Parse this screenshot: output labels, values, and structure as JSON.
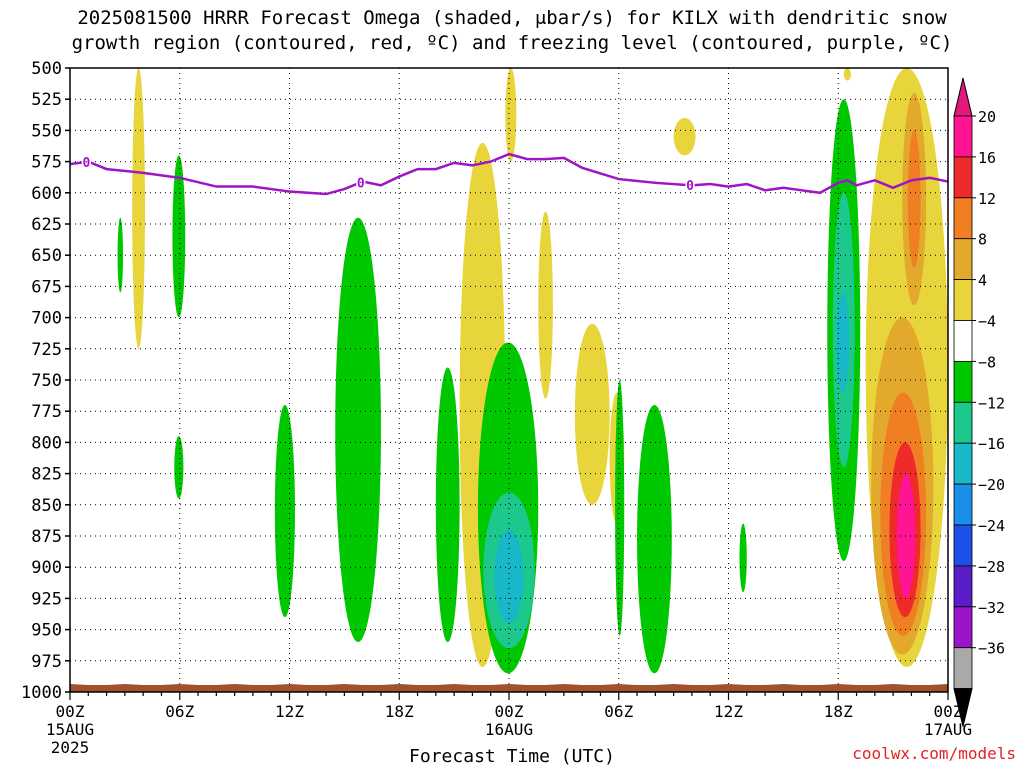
{
  "title_line1": "2025081500 HRRR Forecast Omega (shaded, μbar/s) for KILX with dendritic snow",
  "title_line2": "growth region (contoured, red, ºC) and freezing level (contoured, purple, ºC)",
  "watermark": "coolwx.com/models",
  "chart_data": {
    "type": "heatmap",
    "title": "2025081500 HRRR Forecast Omega (shaded, μbar/s) for KILX with dendritic snow growth region (contoured, red, ºC) and freezing level (contoured, purple, ºC)",
    "xlabel": "Forecast Time (UTC)",
    "ylabel": "",
    "x_range_hours": [
      0,
      48
    ],
    "y_range_hPa": [
      1000,
      500
    ],
    "y_ticks": [
      500,
      525,
      550,
      575,
      600,
      625,
      650,
      675,
      700,
      725,
      750,
      775,
      800,
      825,
      850,
      875,
      900,
      925,
      950,
      975,
      1000
    ],
    "x_ticks": [
      {
        "hour": 0,
        "label": "00Z",
        "date": "15AUG",
        "year": "2025"
      },
      {
        "hour": 6,
        "label": "06Z"
      },
      {
        "hour": 12,
        "label": "12Z"
      },
      {
        "hour": 18,
        "label": "18Z"
      },
      {
        "hour": 24,
        "label": "00Z",
        "date": "16AUG"
      },
      {
        "hour": 30,
        "label": "06Z"
      },
      {
        "hour": 36,
        "label": "12Z"
      },
      {
        "hour": 42,
        "label": "18Z"
      },
      {
        "hour": 48,
        "label": "00Z",
        "date": "17AUG"
      }
    ],
    "grid": true,
    "colorbar": {
      "labels": [
        "20",
        "16",
        "12",
        "8",
        "4",
        "−4",
        "−8",
        "−12",
        "−16",
        "−20",
        "−24",
        "−28",
        "−32",
        "−36"
      ],
      "bins": [
        "#ff1493",
        "#ee2a2a",
        "#ef7f22",
        "#e2a92c",
        "#e8d53c",
        "#ffffff",
        "#00c800",
        "#1dc88c",
        "#18b8c8",
        "#1a8fe8",
        "#1e4fe8",
        "#5a1ec8",
        "#9a14c8",
        "#a9a9a9"
      ],
      "top_arrow_color": "#e2187a",
      "bottom_arrow_color": "#000000"
    },
    "freezing_level": {
      "label": "0",
      "hours": [
        0,
        1,
        2,
        4,
        6,
        8,
        10,
        12,
        14,
        15,
        16,
        17,
        18,
        19,
        20,
        21,
        22,
        23,
        24,
        25,
        26,
        27,
        28,
        30,
        32,
        34,
        35,
        36,
        37,
        38,
        39,
        40,
        41,
        42,
        42.5,
        43,
        44,
        45,
        46,
        47,
        48
      ],
      "hPa": [
        577,
        575,
        581,
        584,
        588,
        595,
        595,
        599,
        601,
        597,
        591,
        594,
        587,
        581,
        581,
        576,
        578,
        575,
        569,
        573,
        573,
        572,
        580,
        589,
        592,
        594,
        593,
        595,
        593,
        598,
        596,
        598,
        600,
        592,
        590,
        594,
        590,
        596,
        590,
        588,
        591
      ],
      "label_hours": [
        0.9,
        15.9,
        33.9
      ],
      "color": "#a014c8"
    },
    "terrain_color": "#a0522d",
    "omega_regions": [
      {
        "color": "#e8d53c",
        "hour_range": [
          3.4,
          4.1
        ],
        "hPa_range": [
          500,
          725
        ]
      },
      {
        "color": "#e8d53c",
        "hour_range": [
          21.3,
          23.8
        ],
        "hPa_range": [
          560,
          980
        ]
      },
      {
        "color": "#e8d53c",
        "hour_range": [
          23.8,
          24.4
        ],
        "hPa_range": [
          500,
          575
        ]
      },
      {
        "color": "#e8d53c",
        "hour_range": [
          25.6,
          26.4
        ],
        "hPa_range": [
          615,
          765
        ]
      },
      {
        "color": "#e8d53c",
        "hour_range": [
          27.6,
          29.5
        ],
        "hPa_range": [
          705,
          850
        ]
      },
      {
        "color": "#e8d53c",
        "hour_range": [
          29.5,
          30.3
        ],
        "hPa_range": [
          760,
          865
        ]
      },
      {
        "color": "#e8d53c",
        "hour_range": [
          33.0,
          34.2
        ],
        "hPa_range": [
          540,
          570
        ]
      },
      {
        "color": "#e8d53c",
        "hour_range": [
          42.3,
          42.7
        ],
        "hPa_range": [
          500,
          510
        ]
      },
      {
        "color": "#e8d53c",
        "hour_range": [
          43.5,
          48.0
        ],
        "hPa_range": [
          500,
          980
        ]
      },
      {
        "color": "#00c800",
        "hour_range": [
          2.6,
          2.9
        ],
        "hPa_range": [
          620,
          680
        ]
      },
      {
        "color": "#00c800",
        "hour_range": [
          5.6,
          6.3
        ],
        "hPa_range": [
          570,
          700
        ]
      },
      {
        "color": "#00c800",
        "hour_range": [
          5.7,
          6.2
        ],
        "hPa_range": [
          795,
          845
        ]
      },
      {
        "color": "#00c800",
        "hour_range": [
          11.2,
          12.3
        ],
        "hPa_range": [
          770,
          940
        ]
      },
      {
        "color": "#00c800",
        "hour_range": [
          14.5,
          17.0
        ],
        "hPa_range": [
          620,
          960
        ]
      },
      {
        "color": "#00c800",
        "hour_range": [
          20.0,
          21.3
        ],
        "hPa_range": [
          740,
          960
        ]
      },
      {
        "color": "#00c800",
        "hour_range": [
          22.3,
          25.6
        ],
        "hPa_range": [
          720,
          985
        ]
      },
      {
        "color": "#00c800",
        "hour_range": [
          29.8,
          30.3
        ],
        "hPa_range": [
          750,
          955
        ]
      },
      {
        "color": "#00c800",
        "hour_range": [
          31.0,
          32.9
        ],
        "hPa_range": [
          770,
          985
        ]
      },
      {
        "color": "#00c800",
        "hour_range": [
          36.6,
          37.0
        ],
        "hPa_range": [
          865,
          920
        ]
      },
      {
        "color": "#00c800",
        "hour_range": [
          41.4,
          43.2
        ],
        "hPa_range": [
          525,
          895
        ]
      },
      {
        "color": "#1dc88c",
        "hour_range": [
          22.6,
          25.4
        ],
        "hPa_range": [
          840,
          965
        ]
      },
      {
        "color": "#1dc88c",
        "hour_range": [
          41.7,
          42.9
        ],
        "hPa_range": [
          600,
          820
        ]
      },
      {
        "color": "#18b8c8",
        "hour_range": [
          23.2,
          24.8
        ],
        "hPa_range": [
          870,
          945
        ]
      },
      {
        "color": "#18b8c8",
        "hour_range": [
          41.9,
          42.6
        ],
        "hPa_range": [
          680,
          760
        ]
      },
      {
        "color": "#e2a92c",
        "hour_range": [
          43.8,
          47.2
        ],
        "hPa_range": [
          700,
          970
        ]
      },
      {
        "color": "#e2a92c",
        "hour_range": [
          45.5,
          46.8
        ],
        "hPa_range": [
          520,
          690
        ]
      },
      {
        "color": "#ef7f22",
        "hour_range": [
          44.3,
          46.8
        ],
        "hPa_range": [
          760,
          955
        ]
      },
      {
        "color": "#ef7f22",
        "hour_range": [
          45.8,
          46.5
        ],
        "hPa_range": [
          550,
          660
        ]
      },
      {
        "color": "#ee2a2a",
        "hour_range": [
          44.8,
          46.5
        ],
        "hPa_range": [
          800,
          940
        ]
      },
      {
        "color": "#ff1493",
        "hour_range": [
          45.2,
          46.2
        ],
        "hPa_range": [
          825,
          925
        ]
      }
    ]
  }
}
